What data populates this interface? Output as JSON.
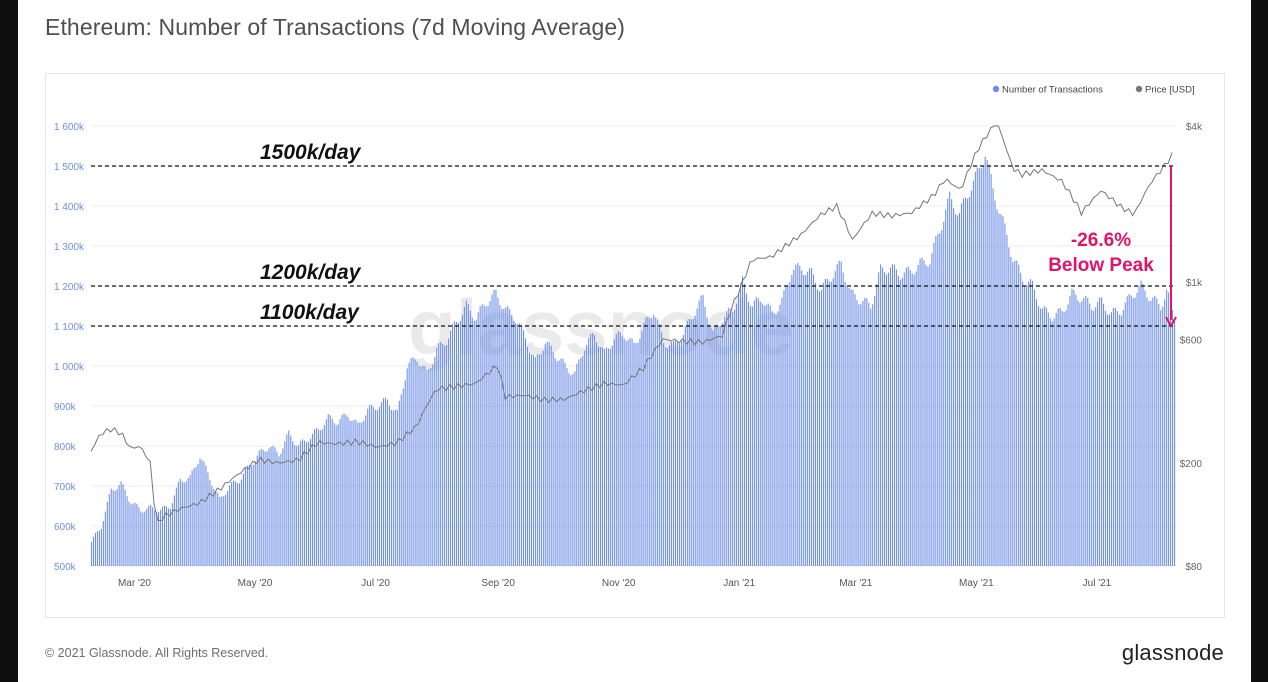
{
  "page": {
    "title": "Ethereum: Number of Transactions (7d Moving Average)",
    "copyright": "© 2021 Glassnode. All Rights Reserved.",
    "logo": "glassnode",
    "watermark": "glassnode"
  },
  "colors": {
    "bars": "#6d8ee6",
    "price_line": "#777777",
    "axis_text_left": "#6e8fe0",
    "axis_text_right": "#666666",
    "annotation": "#e0156a",
    "grid": "#ececec"
  },
  "chart_data": {
    "type": "bar",
    "title": "Ethereum: Number of Transactions (7d Moving Average)",
    "legend": {
      "position": "top-right",
      "entries": [
        {
          "name": "Number of Transactions",
          "color": "#6d8ee6"
        },
        {
          "name": "Price [USD]",
          "color": "#777777"
        }
      ]
    },
    "x_range": [
      "2020-02-08",
      "2021-08-10"
    ],
    "x_ticks": [
      {
        "date": "2020-03-01",
        "label": "Mar '20"
      },
      {
        "date": "2020-05-01",
        "label": "May '20"
      },
      {
        "date": "2020-07-01",
        "label": "Jul '20"
      },
      {
        "date": "2020-09-01",
        "label": "Sep '20"
      },
      {
        "date": "2020-11-01",
        "label": "Nov '20"
      },
      {
        "date": "2021-01-01",
        "label": "Jan '21"
      },
      {
        "date": "2021-03-01",
        "label": "Mar '21"
      },
      {
        "date": "2021-05-01",
        "label": "May '21"
      },
      {
        "date": "2021-07-01",
        "label": "Jul '21"
      }
    ],
    "y_left": {
      "range": [
        500000,
        1600000
      ],
      "ticks": [
        {
          "value": 500000,
          "label": "500k"
        },
        {
          "value": 600000,
          "label": "600k"
        },
        {
          "value": 700000,
          "label": "700k"
        },
        {
          "value": 800000,
          "label": "800k"
        },
        {
          "value": 900000,
          "label": "900k"
        },
        {
          "value": 1000000,
          "label": "1 000k"
        },
        {
          "value": 1100000,
          "label": "1 100k"
        },
        {
          "value": 1200000,
          "label": "1 200k"
        },
        {
          "value": 1300000,
          "label": "1 300k"
        },
        {
          "value": 1400000,
          "label": "1 400k"
        },
        {
          "value": 1500000,
          "label": "1 500k"
        },
        {
          "value": 1600000,
          "label": "1 600k"
        }
      ]
    },
    "y_right": {
      "scale": "log",
      "range": [
        80,
        4000
      ],
      "ticks": [
        {
          "value": 80,
          "label": "$80"
        },
        {
          "value": 200,
          "label": "$200"
        },
        {
          "value": 600,
          "label": "$600"
        },
        {
          "value": 1000,
          "label": "$1k"
        },
        {
          "value": 4000,
          "label": "$4k"
        }
      ]
    },
    "grid": true,
    "series": [
      {
        "name": "Number of Transactions",
        "axis": "left",
        "points": [
          [
            "2020-02-08",
            560000
          ],
          [
            "2020-02-13",
            600000
          ],
          [
            "2020-02-18",
            690000
          ],
          [
            "2020-02-23",
            705000
          ],
          [
            "2020-02-28",
            660000
          ],
          [
            "2020-03-04",
            640000
          ],
          [
            "2020-03-09",
            645000
          ],
          [
            "2020-03-14",
            640000
          ],
          [
            "2020-03-19",
            650000
          ],
          [
            "2020-03-24",
            715000
          ],
          [
            "2020-03-29",
            720000
          ],
          [
            "2020-04-03",
            775000
          ],
          [
            "2020-04-08",
            720000
          ],
          [
            "2020-04-13",
            665000
          ],
          [
            "2020-04-18",
            700000
          ],
          [
            "2020-04-23",
            715000
          ],
          [
            "2020-04-28",
            750000
          ],
          [
            "2020-05-03",
            780000
          ],
          [
            "2020-05-08",
            800000
          ],
          [
            "2020-05-13",
            780000
          ],
          [
            "2020-05-18",
            830000
          ],
          [
            "2020-05-23",
            800000
          ],
          [
            "2020-05-28",
            820000
          ],
          [
            "2020-06-02",
            840000
          ],
          [
            "2020-06-07",
            870000
          ],
          [
            "2020-06-12",
            860000
          ],
          [
            "2020-06-17",
            880000
          ],
          [
            "2020-06-22",
            850000
          ],
          [
            "2020-06-27",
            890000
          ],
          [
            "2020-07-02",
            900000
          ],
          [
            "2020-07-07",
            915000
          ],
          [
            "2020-07-12",
            880000
          ],
          [
            "2020-07-17",
            1000000
          ],
          [
            "2020-07-22",
            1020000
          ],
          [
            "2020-07-27",
            980000
          ],
          [
            "2020-08-01",
            1040000
          ],
          [
            "2020-08-06",
            1065000
          ],
          [
            "2020-08-11",
            1110000
          ],
          [
            "2020-08-16",
            1150000
          ],
          [
            "2020-08-21",
            1120000
          ],
          [
            "2020-08-26",
            1160000
          ],
          [
            "2020-08-31",
            1180000
          ],
          [
            "2020-09-05",
            1140000
          ],
          [
            "2020-09-10",
            1120000
          ],
          [
            "2020-09-15",
            1070000
          ],
          [
            "2020-09-20",
            1010000
          ],
          [
            "2020-09-25",
            1060000
          ],
          [
            "2020-09-30",
            1030000
          ],
          [
            "2020-10-05",
            1000000
          ],
          [
            "2020-10-10",
            980000
          ],
          [
            "2020-10-15",
            1050000
          ],
          [
            "2020-10-20",
            1080000
          ],
          [
            "2020-10-25",
            1030000
          ],
          [
            "2020-10-30",
            1070000
          ],
          [
            "2020-11-04",
            1080000
          ],
          [
            "2020-11-09",
            1050000
          ],
          [
            "2020-11-14",
            1100000
          ],
          [
            "2020-11-19",
            1140000
          ],
          [
            "2020-11-24",
            1060000
          ],
          [
            "2020-11-29",
            1050000
          ],
          [
            "2020-12-04",
            1080000
          ],
          [
            "2020-12-09",
            1130000
          ],
          [
            "2020-12-14",
            1170000
          ],
          [
            "2020-12-19",
            1080000
          ],
          [
            "2020-12-24",
            1120000
          ],
          [
            "2020-12-29",
            1140000
          ],
          [
            "2021-01-03",
            1210000
          ],
          [
            "2021-01-08",
            1150000
          ],
          [
            "2021-01-13",
            1170000
          ],
          [
            "2021-01-18",
            1130000
          ],
          [
            "2021-01-23",
            1160000
          ],
          [
            "2021-01-28",
            1240000
          ],
          [
            "2021-02-02",
            1245000
          ],
          [
            "2021-02-07",
            1230000
          ],
          [
            "2021-02-12",
            1190000
          ],
          [
            "2021-02-17",
            1225000
          ],
          [
            "2021-02-22",
            1255000
          ],
          [
            "2021-02-27",
            1180000
          ],
          [
            "2021-03-04",
            1165000
          ],
          [
            "2021-03-09",
            1150000
          ],
          [
            "2021-03-14",
            1240000
          ],
          [
            "2021-03-19",
            1245000
          ],
          [
            "2021-03-24",
            1230000
          ],
          [
            "2021-03-29",
            1235000
          ],
          [
            "2021-04-03",
            1255000
          ],
          [
            "2021-04-08",
            1265000
          ],
          [
            "2021-04-13",
            1340000
          ],
          [
            "2021-04-18",
            1420000
          ],
          [
            "2021-04-23",
            1380000
          ],
          [
            "2021-04-28",
            1440000
          ],
          [
            "2021-05-03",
            1490000
          ],
          [
            "2021-05-06",
            1535000
          ],
          [
            "2021-05-10",
            1440000
          ],
          [
            "2021-05-15",
            1360000
          ],
          [
            "2021-05-20",
            1270000
          ],
          [
            "2021-05-25",
            1220000
          ],
          [
            "2021-05-30",
            1200000
          ],
          [
            "2021-06-04",
            1140000
          ],
          [
            "2021-06-09",
            1125000
          ],
          [
            "2021-06-14",
            1135000
          ],
          [
            "2021-06-19",
            1180000
          ],
          [
            "2021-06-24",
            1170000
          ],
          [
            "2021-06-29",
            1150000
          ],
          [
            "2021-07-04",
            1160000
          ],
          [
            "2021-07-09",
            1130000
          ],
          [
            "2021-07-14",
            1140000
          ],
          [
            "2021-07-19",
            1175000
          ],
          [
            "2021-07-24",
            1200000
          ],
          [
            "2021-07-29",
            1170000
          ],
          [
            "2021-08-03",
            1150000
          ],
          [
            "2021-08-06",
            1185000
          ],
          [
            "2021-08-10",
            1125000
          ]
        ]
      },
      {
        "name": "Price [USD]",
        "axis": "right",
        "points": [
          [
            "2020-02-08",
            222
          ],
          [
            "2020-02-13",
            260
          ],
          [
            "2020-02-18",
            270
          ],
          [
            "2020-02-23",
            262
          ],
          [
            "2020-02-28",
            228
          ],
          [
            "2020-03-04",
            232
          ],
          [
            "2020-03-09",
            200
          ],
          [
            "2020-03-12",
            112
          ],
          [
            "2020-03-14",
            122
          ],
          [
            "2020-03-24",
            133
          ],
          [
            "2020-04-03",
            140
          ],
          [
            "2020-04-13",
            158
          ],
          [
            "2020-04-23",
            182
          ],
          [
            "2020-05-03",
            206
          ],
          [
            "2020-05-13",
            200
          ],
          [
            "2020-05-23",
            205
          ],
          [
            "2020-06-02",
            240
          ],
          [
            "2020-06-12",
            237
          ],
          [
            "2020-06-22",
            242
          ],
          [
            "2020-07-02",
            230
          ],
          [
            "2020-07-12",
            239
          ],
          [
            "2020-07-22",
            276
          ],
          [
            "2020-08-01",
            385
          ],
          [
            "2020-08-11",
            395
          ],
          [
            "2020-08-21",
            405
          ],
          [
            "2020-09-01",
            475
          ],
          [
            "2020-09-05",
            360
          ],
          [
            "2020-09-15",
            365
          ],
          [
            "2020-09-25",
            350
          ],
          [
            "2020-10-05",
            352
          ],
          [
            "2020-10-15",
            380
          ],
          [
            "2020-10-25",
            405
          ],
          [
            "2020-11-04",
            400
          ],
          [
            "2020-11-14",
            465
          ],
          [
            "2020-11-24",
            600
          ],
          [
            "2020-12-04",
            590
          ],
          [
            "2020-12-14",
            585
          ],
          [
            "2020-12-24",
            620
          ],
          [
            "2021-01-03",
            980
          ],
          [
            "2021-01-08",
            1220
          ],
          [
            "2021-01-18",
            1250
          ],
          [
            "2021-02-02",
            1520
          ],
          [
            "2021-02-12",
            1820
          ],
          [
            "2021-02-20",
            1960
          ],
          [
            "2021-02-28",
            1450
          ],
          [
            "2021-03-10",
            1840
          ],
          [
            "2021-03-20",
            1800
          ],
          [
            "2021-03-30",
            1850
          ],
          [
            "2021-04-10",
            2150
          ],
          [
            "2021-04-16",
            2500
          ],
          [
            "2021-04-24",
            2250
          ],
          [
            "2021-05-03",
            3300
          ],
          [
            "2021-05-12",
            4150
          ],
          [
            "2021-05-20",
            2750
          ],
          [
            "2021-05-25",
            2600
          ],
          [
            "2021-06-04",
            2700
          ],
          [
            "2021-06-14",
            2450
          ],
          [
            "2021-06-24",
            1850
          ],
          [
            "2021-07-04",
            2250
          ],
          [
            "2021-07-14",
            1950
          ],
          [
            "2021-07-21",
            1820
          ],
          [
            "2021-07-29",
            2400
          ],
          [
            "2021-08-05",
            2800
          ],
          [
            "2021-08-10",
            3150
          ]
        ]
      }
    ],
    "annotations": [
      {
        "type": "hline",
        "value": 1500000,
        "label": "1500k/day"
      },
      {
        "type": "hline",
        "value": 1200000,
        "label": "1200k/day"
      },
      {
        "type": "hline",
        "value": 1100000,
        "label": "1100k/day"
      },
      {
        "type": "arrow",
        "from": 1500000,
        "to": 1100000,
        "label_line1": "-26.6%",
        "label_line2": "Below Peak"
      }
    ]
  }
}
